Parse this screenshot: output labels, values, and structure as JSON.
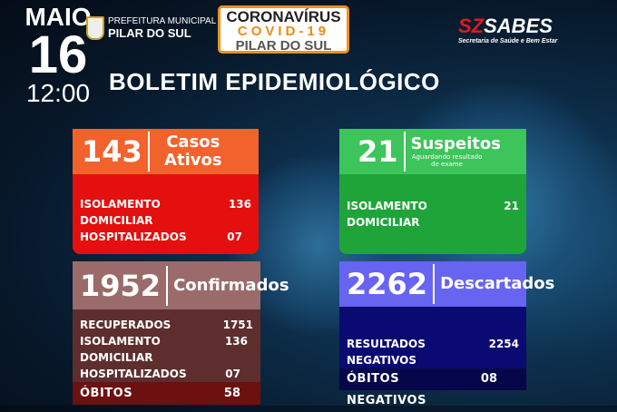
{
  "header": {
    "month": "MAIO",
    "day": "16",
    "time": "12:00",
    "prefeitura_line1": "PREFEITURA MUNICIPAL",
    "prefeitura_line2": "PILAR DO SUL",
    "banner_line1": "CORONAVÍRUS",
    "banner_line2": "COVID-19",
    "banner_line3": "PILAR DO SUL",
    "sabes_logo": "SABES",
    "sabes_sub": "Secretaria de Saúde e Bem Estar",
    "title": "BOLETIM EPIDEMIOLÓGICO"
  },
  "cards": {
    "ativos": {
      "value": "143",
      "label1": "Casos",
      "label2": "Ativos",
      "rows": [
        {
          "label": "ISOLAMENTO DOMICILIAR",
          "value": "136"
        },
        {
          "label": "HOSPITALIZADOS",
          "value": "07"
        }
      ]
    },
    "suspeitos": {
      "value": "21",
      "label": "Suspeitos",
      "sub": "Aguardando resultado de exame",
      "rows": [
        {
          "label": "ISOLAMENTO DOMICILIAR",
          "value": "21"
        }
      ]
    },
    "confirmados": {
      "value": "1952",
      "label": "Confirmados",
      "rows": [
        {
          "label": "RECUPERADOS",
          "value": "1751"
        },
        {
          "label": "ISOLAMENTO DOMICILIAR",
          "value": "136"
        },
        {
          "label": "HOSPITALIZADOS",
          "value": "07"
        }
      ],
      "obitos": {
        "label": "ÓBITOS",
        "value": "58"
      }
    },
    "descartados": {
      "value": "2262",
      "label": "Descartados",
      "rows": [
        {
          "label": "RESULTADOS NEGATIVOS",
          "value": "2254"
        }
      ],
      "obitos": {
        "label": "ÓBITOS NEGATIVOS",
        "value": "08"
      }
    }
  },
  "colors": {
    "ativos_head": "#f2622c",
    "ativos_body": "#e3100f",
    "suspeitos_head": "#3dc45a",
    "suspeitos_body": "#1fa43a",
    "confirmados_head": "#9a6b6a",
    "confirmados_body": "#5e2e2e",
    "obitos": "#6c1010",
    "descartados_head": "#6864f2",
    "descartados_body": "#0a0a72"
  }
}
